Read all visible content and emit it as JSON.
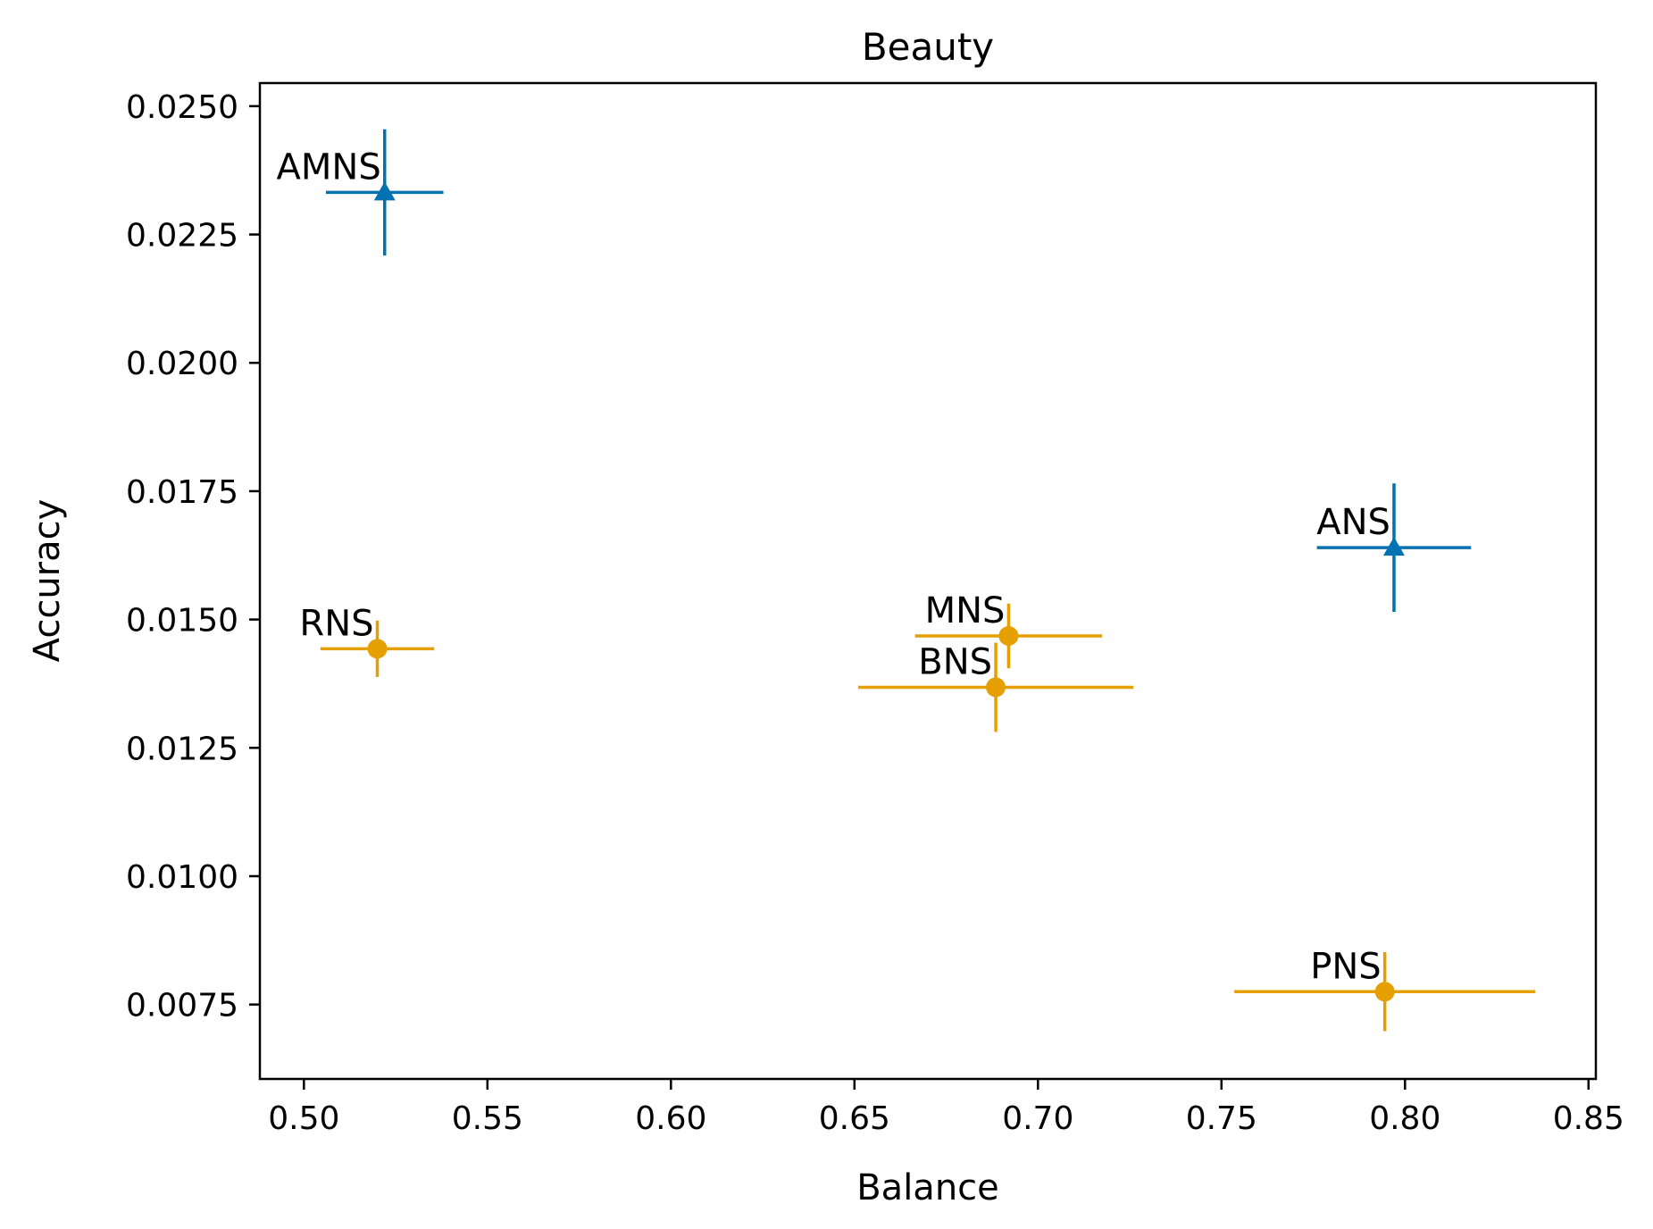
{
  "chart_data": {
    "type": "scatter",
    "title": "Beauty",
    "xlabel": "Balance",
    "ylabel": "Accuracy",
    "xlim": [
      0.488,
      0.852
    ],
    "ylim": [
      0.00605,
      0.02545
    ],
    "xticks": [
      "0.50",
      "0.55",
      "0.60",
      "0.65",
      "0.70",
      "0.75",
      "0.80",
      "0.85"
    ],
    "yticks": [
      "0.0075",
      "0.0100",
      "0.0125",
      "0.0150",
      "0.0175",
      "0.0200",
      "0.0225",
      "0.0250"
    ],
    "grid": false,
    "series": [
      {
        "color": "#0072B2",
        "marker": "triangle",
        "points": [
          {
            "label": "AMNS",
            "x": 0.522,
            "y": 0.02332,
            "xerr": 0.016,
            "yerr": 0.00123
          },
          {
            "label": "ANS",
            "x": 0.797,
            "y": 0.0164,
            "xerr": 0.021,
            "yerr": 0.00125
          }
        ]
      },
      {
        "color": "#E69F00",
        "marker": "circle",
        "points": [
          {
            "label": "RNS",
            "x": 0.52,
            "y": 0.01443,
            "xerr": 0.0155,
            "yerr": 0.00055
          },
          {
            "label": "MNS",
            "x": 0.692,
            "y": 0.01468,
            "xerr": 0.0255,
            "yerr": 0.00063
          },
          {
            "label": "BNS",
            "x": 0.6885,
            "y": 0.01368,
            "xerr": 0.0375,
            "yerr": 0.00087
          },
          {
            "label": "PNS",
            "x": 0.7945,
            "y": 0.00775,
            "xerr": 0.041,
            "yerr": 0.00077
          }
        ]
      }
    ]
  }
}
